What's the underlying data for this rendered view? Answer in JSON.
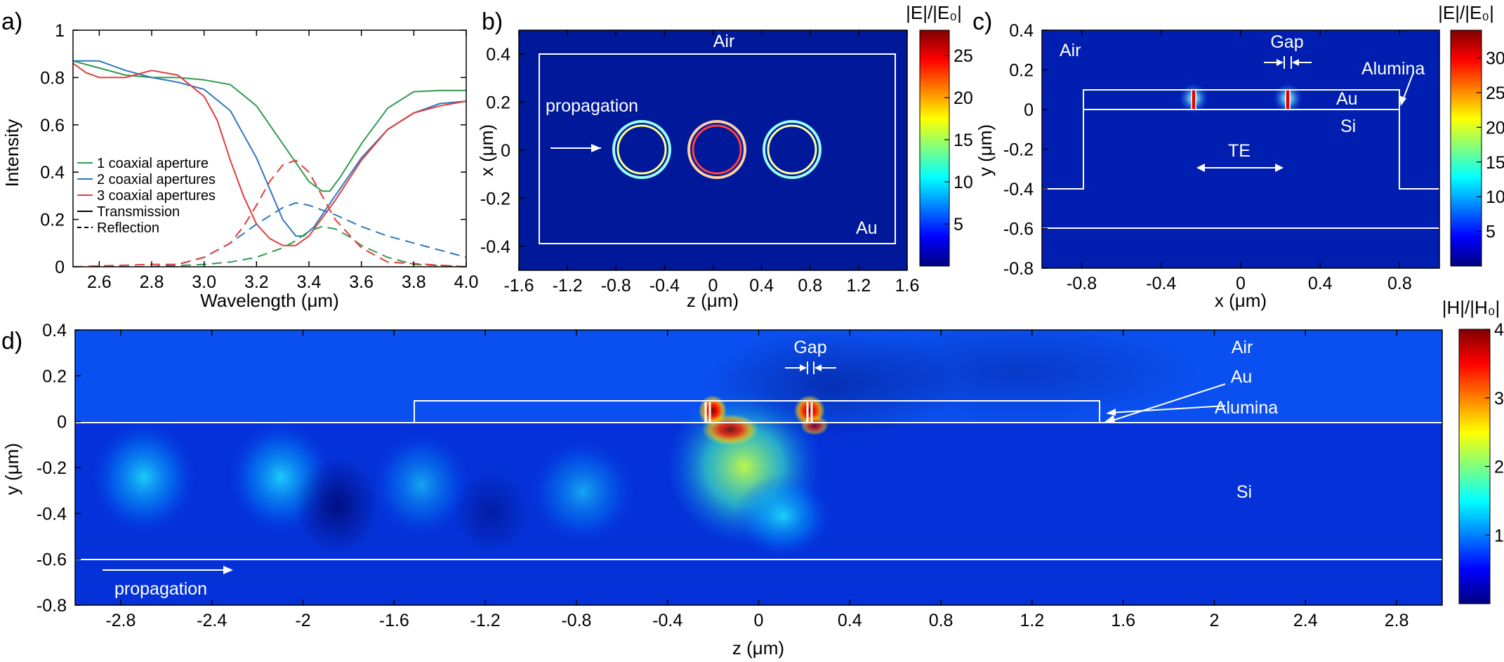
{
  "chart_data": [
    {
      "panel": "a)",
      "type": "line",
      "xlabel": "Wavelength (μm)",
      "ylabel": "Intensity",
      "xlim": [
        2.5,
        4.0
      ],
      "ylim": [
        0,
        1
      ],
      "x_ticks": [
        "2.6",
        "2.8",
        "3.0",
        "3.2",
        "3.4",
        "3.6",
        "3.8",
        "4.0"
      ],
      "y_ticks": [
        "0",
        "0.2",
        "0.4",
        "0.6",
        "0.8",
        "1"
      ],
      "x_tick_values": [
        2.6,
        2.8,
        3.0,
        3.2,
        3.4,
        3.6,
        3.8,
        4.0
      ],
      "y_tick_values": [
        0,
        0.2,
        0.4,
        0.6,
        0.8,
        1
      ],
      "legend": [
        {
          "label": "1 coaxial aperture",
          "color": "#2e9b4e",
          "style": "solid"
        },
        {
          "label": "2 coaxial apertures",
          "color": "#2f78bd",
          "style": "solid"
        },
        {
          "label": "3 coaxial apertures",
          "color": "#e23c3c",
          "style": "solid"
        },
        {
          "label": "Transmission",
          "color": "#000000",
          "style": "solid"
        },
        {
          "label": "Reflection",
          "color": "#000000",
          "style": "dashed"
        }
      ],
      "series": [
        {
          "name": "1 coaxial aperture - Transmission",
          "color": "#2e9b4e",
          "dash": false,
          "x": [
            2.5,
            2.6,
            2.7,
            2.8,
            2.9,
            3.0,
            3.1,
            3.2,
            3.3,
            3.35,
            3.4,
            3.45,
            3.48,
            3.52,
            3.6,
            3.7,
            3.8,
            3.9,
            4.0
          ],
          "y": [
            0.87,
            0.84,
            0.81,
            0.8,
            0.8,
            0.79,
            0.77,
            0.68,
            0.52,
            0.44,
            0.36,
            0.32,
            0.32,
            0.38,
            0.52,
            0.67,
            0.74,
            0.745,
            0.745
          ]
        },
        {
          "name": "2 coaxial apertures - Transmission",
          "color": "#2f78bd",
          "dash": false,
          "x": [
            2.5,
            2.6,
            2.7,
            2.8,
            2.9,
            3.0,
            3.1,
            3.2,
            3.25,
            3.3,
            3.35,
            3.38,
            3.42,
            3.5,
            3.6,
            3.7,
            3.8,
            3.9,
            4.0
          ],
          "y": [
            0.87,
            0.87,
            0.83,
            0.8,
            0.78,
            0.75,
            0.66,
            0.46,
            0.33,
            0.2,
            0.13,
            0.13,
            0.17,
            0.3,
            0.46,
            0.58,
            0.65,
            0.69,
            0.7
          ]
        },
        {
          "name": "3 coaxial apertures - Transmission",
          "color": "#e23c3c",
          "dash": false,
          "x": [
            2.5,
            2.55,
            2.6,
            2.7,
            2.8,
            2.9,
            3.0,
            3.05,
            3.1,
            3.15,
            3.2,
            3.25,
            3.3,
            3.35,
            3.4,
            3.5,
            3.6,
            3.7,
            3.8,
            3.9,
            4.0
          ],
          "y": [
            0.86,
            0.82,
            0.8,
            0.8,
            0.83,
            0.81,
            0.72,
            0.62,
            0.45,
            0.3,
            0.18,
            0.12,
            0.09,
            0.09,
            0.13,
            0.28,
            0.45,
            0.58,
            0.65,
            0.68,
            0.7
          ]
        },
        {
          "name": "1 coaxial aperture - Reflection",
          "color": "#2e9b4e",
          "dash": true,
          "x": [
            2.5,
            2.8,
            3.0,
            3.1,
            3.2,
            3.3,
            3.35,
            3.4,
            3.45,
            3.5,
            3.55,
            3.6,
            3.7,
            3.8,
            4.0
          ],
          "y": [
            0,
            0,
            0.01,
            0.02,
            0.04,
            0.08,
            0.11,
            0.15,
            0.17,
            0.16,
            0.13,
            0.09,
            0.04,
            0.01,
            0
          ]
        },
        {
          "name": "2 coaxial apertures - Reflection",
          "color": "#2f78bd",
          "dash": true,
          "x": [
            2.5,
            2.8,
            2.9,
            3.0,
            3.1,
            3.2,
            3.3,
            3.35,
            3.4,
            3.5,
            3.6,
            3.7,
            3.8,
            3.9,
            4.0
          ],
          "y": [
            0,
            0,
            0.01,
            0.04,
            0.1,
            0.18,
            0.25,
            0.27,
            0.26,
            0.22,
            0.17,
            0.13,
            0.1,
            0.07,
            0.04
          ]
        },
        {
          "name": "3 coaxial apertures - Reflection",
          "color": "#e23c3c",
          "dash": true,
          "x": [
            2.5,
            2.8,
            2.9,
            3.0,
            3.1,
            3.15,
            3.2,
            3.25,
            3.3,
            3.35,
            3.4,
            3.45,
            3.5,
            3.6,
            3.7,
            4.0
          ],
          "y": [
            0,
            0.01,
            0.01,
            0.04,
            0.1,
            0.17,
            0.26,
            0.36,
            0.43,
            0.45,
            0.4,
            0.3,
            0.2,
            0.08,
            0.02,
            0
          ]
        }
      ]
    },
    {
      "panel": "b)",
      "type": "heatmap",
      "xlabel": "z (μm)",
      "ylabel": "x (μm)",
      "xlim": [
        -1.6,
        1.6
      ],
      "ylim": [
        -0.5,
        0.5
      ],
      "x_ticks": [
        "-1.6",
        "-1.2",
        "-0.8",
        "-0.4",
        "0",
        "0.4",
        "0.8",
        "1.2",
        "1.6"
      ],
      "y_ticks": [
        "-0.4",
        "-0.2",
        "0",
        "0.2",
        "0.4"
      ],
      "x_tick_values": [
        -1.6,
        -1.2,
        -0.8,
        -0.4,
        0,
        0.4,
        0.8,
        1.2,
        1.6
      ],
      "y_tick_values": [
        -0.4,
        -0.2,
        0,
        0.2,
        0.4
      ],
      "colorbar_title": "|E|/|E₀|",
      "colorbar_ticks": [
        "5",
        "10",
        "15",
        "20",
        "25"
      ],
      "colorbar_tick_values": [
        5,
        10,
        15,
        20,
        25
      ],
      "colorbar_range": [
        0,
        28
      ],
      "annotations": [
        "Air",
        "Au",
        "propagation"
      ],
      "apertures_z": [
        -0.65,
        0,
        0.65
      ],
      "aperture_radius": 0.15
    },
    {
      "panel": "c)",
      "type": "heatmap",
      "xlabel": "x (μm)",
      "ylabel": "y (μm)",
      "xlim": [
        -1.0,
        1.0
      ],
      "ylim": [
        -0.8,
        0.4
      ],
      "x_ticks": [
        "-0.8",
        "-0.4",
        "0",
        "0.4",
        "0.8"
      ],
      "y_ticks": [
        "-0.8",
        "-0.6",
        "-0.4",
        "-0.2",
        "0",
        "0.2",
        "0.4"
      ],
      "x_tick_values": [
        -0.8,
        -0.4,
        0,
        0.4,
        0.8
      ],
      "y_tick_values": [
        -0.8,
        -0.6,
        -0.4,
        -0.2,
        0,
        0.2,
        0.4
      ],
      "colorbar_title": "|E|/|E₀|",
      "colorbar_ticks": [
        "5",
        "10",
        "15",
        "20",
        "25",
        "30"
      ],
      "colorbar_tick_values": [
        5,
        10,
        15,
        20,
        25,
        30
      ],
      "colorbar_range": [
        0,
        34
      ],
      "annotations": [
        "Air",
        "Gap",
        "Alumina",
        "Au",
        "Si",
        "TE"
      ]
    },
    {
      "panel": "d)",
      "type": "heatmap",
      "xlabel": "z (μm)",
      "ylabel": "y (μm)",
      "xlim": [
        -3.0,
        3.0
      ],
      "ylim": [
        -0.8,
        0.4
      ],
      "x_ticks": [
        "-2.8",
        "-2.4",
        "-2",
        "-1.6",
        "-1.2",
        "-0.8",
        "-0.4",
        "0",
        "0.4",
        "0.8",
        "1.2",
        "1.6",
        "2",
        "2.4",
        "2.8"
      ],
      "y_ticks": [
        "-0.8",
        "-0.6",
        "-0.4",
        "-0.2",
        "0",
        "0.2",
        "0.4"
      ],
      "x_tick_values": [
        -2.8,
        -2.4,
        -2,
        -1.6,
        -1.2,
        -0.8,
        -0.4,
        0,
        0.4,
        0.8,
        1.2,
        1.6,
        2,
        2.4,
        2.8
      ],
      "y_tick_values": [
        -0.8,
        -0.6,
        -0.4,
        -0.2,
        0,
        0.2,
        0.4
      ],
      "colorbar_title": "|H|/|H₀|",
      "colorbar_ticks": [
        "1",
        "2",
        "3",
        "4"
      ],
      "colorbar_tick_values": [
        1,
        2,
        3,
        4
      ],
      "colorbar_range": [
        0,
        4
      ],
      "annotations": [
        "Gap",
        "Air",
        "Au",
        "Alumina",
        "Si",
        "propagation"
      ]
    }
  ],
  "colormap": [
    "#00007f",
    "#0000ff",
    "#007fff",
    "#00ffff",
    "#7fff7f",
    "#ffff00",
    "#ff7f00",
    "#ff0000",
    "#7f0000"
  ]
}
